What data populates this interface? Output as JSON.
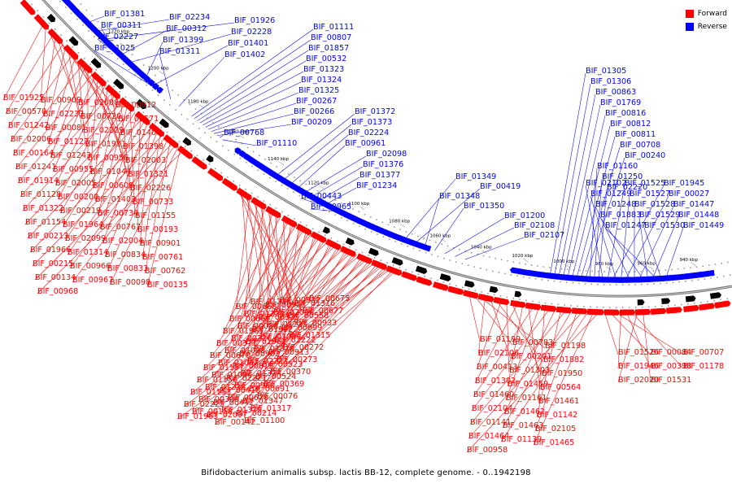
{
  "caption": "Bifidobacterium animalis subsp. lactis BB-12, complete genome. - 0..1942198",
  "legend": {
    "forward_label": "Forward",
    "reverse_label": "Reverse",
    "forward_color": "#ff0000",
    "reverse_color": "#0000ff"
  },
  "scale_ticks": [
    "1220 kbp",
    "1200 kbp",
    "1180 kbp",
    "1160 kbp",
    "1140 kbp",
    "1120 kbp",
    "1100 kbp",
    "1080 kbp",
    "1060 kbp",
    "1040 kbp",
    "1020 kbp",
    "1000 kbp",
    "980 kbp",
    "960 kbp",
    "940 kbp"
  ],
  "reverse_labels": [
    "BIF_01381",
    "BIF_02234",
    "BIF_01926",
    "BIF_00311",
    "BIF_00312",
    "BIF_02228",
    "BIF_02227",
    "BIF_01399",
    "BIF_01401",
    "BIF_01025",
    "BIF_01311",
    "BIF_01402",
    "BIF_01111",
    "BIF_00807",
    "BIF_01857",
    "BIF_00532",
    "BIF_01323",
    "BIF_01324",
    "BIF_01325",
    "BIF_00267",
    "BIF_00266",
    "BIF_00209",
    "BIF_00768",
    "BIF_01110",
    "BIF_01372",
    "BIF_01373",
    "BIF_02224",
    "BIF_00961",
    "BIF_02098",
    "BIF_01376",
    "BIF_01377",
    "BIF_01234",
    "BIF_00443",
    "BIF_00965",
    "BIF_01349",
    "BIF_00419",
    "BIF_01348",
    "BIF_01350",
    "BIF_01200",
    "BIF_02108",
    "BIF_02107",
    "BIF_01305",
    "BIF_01306",
    "BIF_00863",
    "BIF_01769",
    "BIF_00816",
    "BIF_00812",
    "BIF_00811",
    "BIF_00708",
    "BIF_00240",
    "BIF_01160",
    "BIF_01250",
    "BIF_02220",
    "BIF_02102",
    "BIF_01525",
    "BIF_01945",
    "BIF_01249",
    "BIF_01527",
    "BIF_00027",
    "BIF_01248",
    "BIF_01528",
    "BIF_01447",
    "BIF_01883",
    "BIF_01529",
    "BIF_01448",
    "BIF_01247",
    "BIF_01530",
    "BIF_01449"
  ],
  "forward_labels_left": [
    "BIF_01925",
    "BIF_00909",
    "BIF_02008",
    "BIF_00912",
    "BIF_00570",
    "BIF_02233",
    "BIF_00720",
    "BIF_00571",
    "BIF_01242",
    "BIF_00081",
    "BIF_02229",
    "BIF_01400",
    "BIF_02006",
    "BIF_01127",
    "BIF_01911",
    "BIF_01398",
    "BIF_00164",
    "BIF_01243",
    "BIF_00956",
    "BIF_02003",
    "BIF_01241",
    "BIF_00955",
    "BIF_01044",
    "BIF_01321",
    "BIF_01914",
    "BIF_02005",
    "BIF_00609",
    "BIF_02226",
    "BIF_01128",
    "BIF_00200",
    "BIF_01403",
    "BIF_00733",
    "BIF_01322",
    "BIF_00219",
    "BIF_00734",
    "BIF_01155",
    "BIF_01154",
    "BIF_01964",
    "BIF_00767",
    "BIF_00193",
    "BIF_00213",
    "BIF_02099",
    "BIF_02004",
    "BIF_00901",
    "BIF_01966",
    "BIF_01314",
    "BIF_00834",
    "BIF_00761",
    "BIF_00215",
    "BIF_00966",
    "BIF_00833",
    "BIF_00762",
    "BIF_00134",
    "BIF_00967",
    "BIF_00098",
    "BIF_00135",
    "BIF_00968"
  ],
  "forward_labels_bottom": [
    "BIF_00675",
    "BIF_00932",
    "BIF_01236",
    "BIF_01316",
    "BIF_00903",
    "BIF_00668",
    "BIF_00677",
    "BIF_02096",
    "BIF_01233",
    "BIF_00558",
    "BIF_00325",
    "BIF_00669",
    "BIF_00933",
    "BIF_01235",
    "BIF_00088",
    "BIF_00099",
    "BIF_01962",
    "BIF_01965",
    "BIF_01315",
    "BIF_01099",
    "BIF_00226",
    "BIF_02222",
    "BIF_01961",
    "BIF_00371",
    "BIF_00272",
    "BIF_01378",
    "BIF_01098",
    "BIF_00913",
    "BIF_00902",
    "BIF_00670",
    "BIF_00273",
    "BIF_02223",
    "BIF_01097",
    "BIF_00523",
    "BIF_00819",
    "BIF_01157",
    "BIF_00370",
    "BIF_01374",
    "BIF_01096",
    "BIF_00524",
    "BIF_02221",
    "BIF_01156",
    "BIF_00369",
    "BIF_00960",
    "BIF_01238",
    "BIF_00691",
    "BIF_00418",
    "BIF_01153",
    "BIF_00076",
    "BIF_00678",
    "BIF_00309",
    "BIF_01347",
    "BIF_00442",
    "BIF_02225",
    "BIF_01317",
    "BIF_01379",
    "BIF_00158",
    "BIF_00214",
    "BIF_02097",
    "BIF_01963",
    "BIF_01100",
    "BIF_00142"
  ],
  "forward_labels_right": [
    "BIF_01199",
    "BIF_00783",
    "BIF_01198",
    "BIF_02106",
    "BIF_00201",
    "BIF_01882",
    "BIF_00413",
    "BIF_01303",
    "BIF_01950",
    "BIF_01302",
    "BIF_01459",
    "BIF_00564",
    "BIF_01460",
    "BIF_01161",
    "BIF_01461",
    "BIF_02104",
    "BIF_01462",
    "BIF_01142",
    "BIF_01141",
    "BIF_01463",
    "BIF_02105",
    "BIF_01464",
    "BIF_01139",
    "BIF_01465",
    "BIF_00958",
    "BIF_01526",
    "BIF_00084",
    "BIF_00707",
    "BIF_01946",
    "BIF_00398",
    "BIF_01178",
    "BIF_02020",
    "BIF_01531"
  ]
}
